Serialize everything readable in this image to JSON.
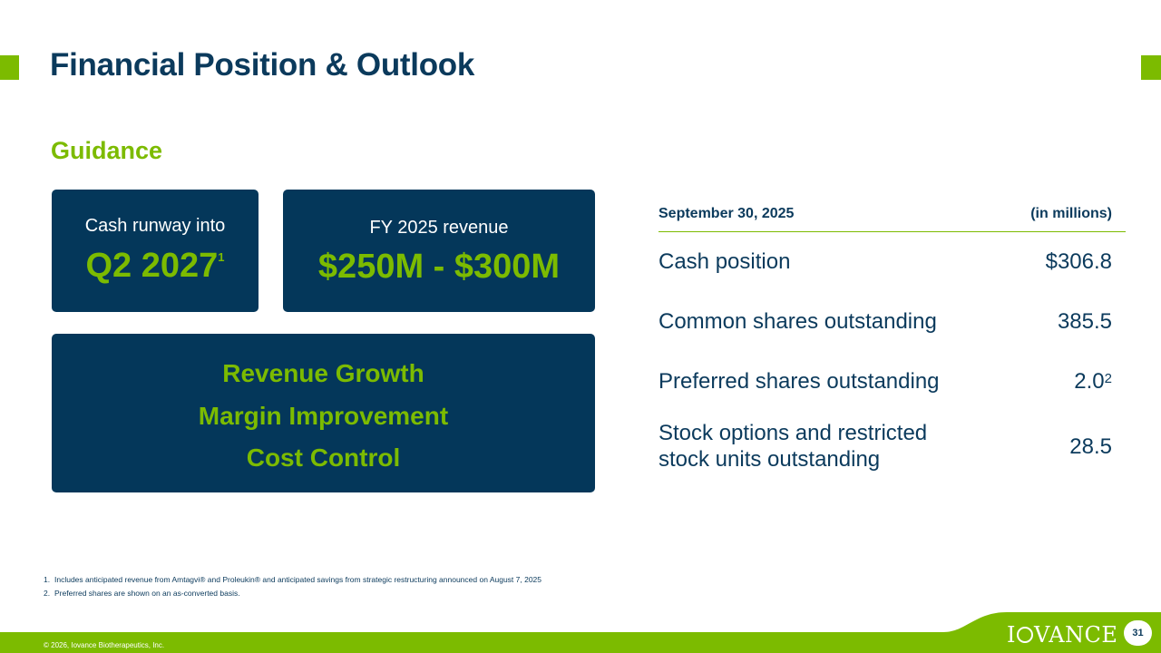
{
  "slide": {
    "title": "Financial Position & Outlook",
    "subtitle": "Guidance",
    "page_number": "31"
  },
  "guidance": {
    "runway": {
      "label": "Cash runway into",
      "value": "Q2 2027",
      "footnote_ref": "1"
    },
    "revenue": {
      "label": "FY 2025 revenue",
      "value": "$250M - $300M"
    },
    "priorities": [
      "Revenue Growth",
      "Margin Improvement",
      "Cost Control"
    ]
  },
  "table": {
    "header_left": "September 30, 2025",
    "header_right": "(in millions)",
    "rows": [
      {
        "label": "Cash position",
        "value": "$306.8",
        "sup": ""
      },
      {
        "label": "Common shares outstanding",
        "value": "385.5",
        "sup": ""
      },
      {
        "label": "Preferred shares outstanding",
        "value": "2.0",
        "sup": "2"
      },
      {
        "label": "Stock options and restricted stock units outstanding",
        "value": "28.5",
        "sup": ""
      }
    ]
  },
  "footnotes": [
    {
      "num": "1.",
      "text": "Includes anticipated revenue from Amtagvi® and Proleukin® and anticipated savings from strategic restructuring announced on August 7, 2025"
    },
    {
      "num": "2.",
      "text": "Preferred shares are shown on an as-converted basis."
    }
  ],
  "footer": {
    "copyright": "© 2026, Iovance Biotherapeutics, Inc.",
    "logo_text": "IOVANCE"
  },
  "colors": {
    "navy": "#04375a",
    "green": "#7cbb00",
    "text": "#0b3a5c"
  }
}
